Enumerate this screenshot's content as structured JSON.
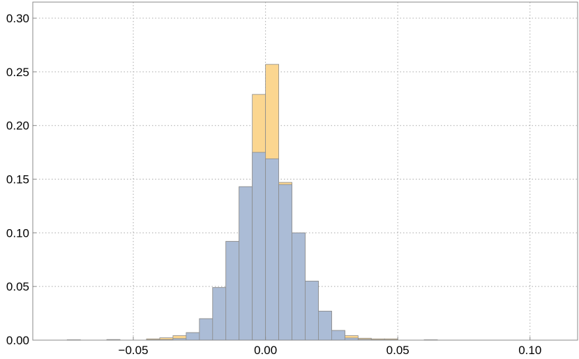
{
  "chart_data": {
    "type": "bar",
    "subtype": "overlaid-histogram",
    "title": "",
    "xlabel": "",
    "ylabel": "",
    "xlim": [
      -0.088,
      0.118
    ],
    "ylim": [
      0,
      0.315
    ],
    "bin_width": 0.005,
    "x_ticks": [
      -0.05,
      0.0,
      0.05,
      0.1
    ],
    "x_tick_labels": [
      "−0.05",
      "0.00",
      "0.05",
      "0.10"
    ],
    "y_ticks": [
      0.0,
      0.05,
      0.1,
      0.15,
      0.2,
      0.25,
      0.3
    ],
    "y_tick_labels": [
      "0.00",
      "0.05",
      "0.10",
      "0.15",
      "0.20",
      "0.25",
      "0.30"
    ],
    "grid": true,
    "legend": "none",
    "series": [
      {
        "color": "#fbd690",
        "bins": [
          {
            "x0": -0.075,
            "x1": -0.07,
            "value": 0.0003
          },
          {
            "x0": -0.06,
            "x1": -0.055,
            "value": 0.0005
          },
          {
            "x0": -0.045,
            "x1": -0.04,
            "value": 0.0012
          },
          {
            "x0": -0.04,
            "x1": -0.035,
            "value": 0.0022
          },
          {
            "x0": -0.035,
            "x1": -0.03,
            "value": 0.0042
          },
          {
            "x0": -0.03,
            "x1": -0.025,
            "value": 0.007
          },
          {
            "x0": -0.025,
            "x1": -0.02,
            "value": 0.02
          },
          {
            "x0": -0.02,
            "x1": -0.015,
            "value": 0.049
          },
          {
            "x0": -0.015,
            "x1": -0.01,
            "value": 0.092
          },
          {
            "x0": -0.01,
            "x1": -0.005,
            "value": 0.143
          },
          {
            "x0": -0.005,
            "x1": 0.0,
            "value": 0.229
          },
          {
            "x0": 0.0,
            "x1": 0.005,
            "value": 0.257
          },
          {
            "x0": 0.005,
            "x1": 0.01,
            "value": 0.147
          },
          {
            "x0": 0.01,
            "x1": 0.015,
            "value": 0.1
          },
          {
            "x0": 0.015,
            "x1": 0.02,
            "value": 0.055
          },
          {
            "x0": 0.02,
            "x1": 0.025,
            "value": 0.027
          },
          {
            "x0": 0.025,
            "x1": 0.03,
            "value": 0.009
          },
          {
            "x0": 0.03,
            "x1": 0.035,
            "value": 0.0042
          },
          {
            "x0": 0.035,
            "x1": 0.04,
            "value": 0.0018
          },
          {
            "x0": 0.04,
            "x1": 0.045,
            "value": 0.0012
          },
          {
            "x0": 0.045,
            "x1": 0.05,
            "value": 0.0012
          },
          {
            "x0": 0.06,
            "x1": 0.065,
            "value": 0.0003
          }
        ]
      },
      {
        "color": "#abbcd6",
        "bins": [
          {
            "x0": -0.075,
            "x1": -0.07,
            "value": 0.0003
          },
          {
            "x0": -0.06,
            "x1": -0.055,
            "value": 0.0005
          },
          {
            "x0": -0.045,
            "x1": -0.04,
            "value": 0.0004
          },
          {
            "x0": -0.04,
            "x1": -0.035,
            "value": 0.0006
          },
          {
            "x0": -0.035,
            "x1": -0.03,
            "value": 0.0015
          },
          {
            "x0": -0.03,
            "x1": -0.025,
            "value": 0.007
          },
          {
            "x0": -0.025,
            "x1": -0.02,
            "value": 0.02
          },
          {
            "x0": -0.02,
            "x1": -0.015,
            "value": 0.049
          },
          {
            "x0": -0.015,
            "x1": -0.01,
            "value": 0.092
          },
          {
            "x0": -0.01,
            "x1": -0.005,
            "value": 0.143
          },
          {
            "x0": -0.005,
            "x1": 0.0,
            "value": 0.175
          },
          {
            "x0": 0.0,
            "x1": 0.005,
            "value": 0.169
          },
          {
            "x0": 0.005,
            "x1": 0.01,
            "value": 0.145
          },
          {
            "x0": 0.01,
            "x1": 0.015,
            "value": 0.1
          },
          {
            "x0": 0.015,
            "x1": 0.02,
            "value": 0.055
          },
          {
            "x0": 0.02,
            "x1": 0.025,
            "value": 0.027
          },
          {
            "x0": 0.025,
            "x1": 0.03,
            "value": 0.009
          },
          {
            "x0": 0.03,
            "x1": 0.035,
            "value": 0.002
          },
          {
            "x0": 0.035,
            "x1": 0.04,
            "value": 0.0008
          },
          {
            "x0": 0.04,
            "x1": 0.045,
            "value": 0.0004
          },
          {
            "x0": 0.045,
            "x1": 0.05,
            "value": 0.0004
          },
          {
            "x0": 0.06,
            "x1": 0.065,
            "value": 0.0003
          }
        ]
      }
    ]
  }
}
